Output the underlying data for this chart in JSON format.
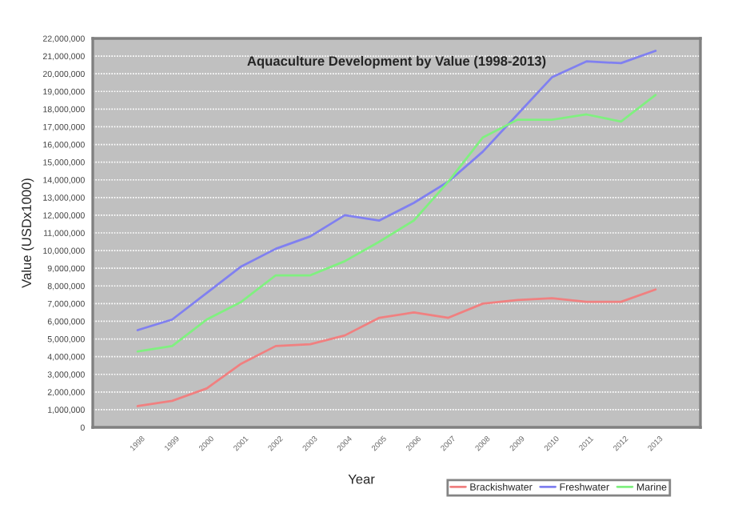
{
  "chart_data": {
    "type": "line",
    "title": "Aquaculture Development by Value (1998-2013)",
    "xlabel": "Year",
    "ylabel": "Value (USDx1000)",
    "categories": [
      "1998",
      "1999",
      "2000",
      "2001",
      "2002",
      "2003",
      "2004",
      "2005",
      "2006",
      "2007",
      "2008",
      "2009",
      "2010",
      "2011",
      "2012",
      "2013"
    ],
    "series": [
      {
        "name": "Brackishwater",
        "color": "#f08080",
        "values": [
          1200000,
          1500000,
          2200000,
          3600000,
          4600000,
          4700000,
          5200000,
          6200000,
          6500000,
          6200000,
          7000000,
          7200000,
          7300000,
          7100000,
          7100000,
          7800000
        ]
      },
      {
        "name": "Freshwater",
        "color": "#8080f0",
        "values": [
          5500000,
          6100000,
          7600000,
          9100000,
          10100000,
          10800000,
          12000000,
          11700000,
          12700000,
          13900000,
          15600000,
          17700000,
          19800000,
          20700000,
          20600000,
          21300000
        ]
      },
      {
        "name": "Marine",
        "color": "#80f080",
        "values": [
          4300000,
          4600000,
          6100000,
          7100000,
          8600000,
          8600000,
          9400000,
          10500000,
          11700000,
          13900000,
          16400000,
          17400000,
          17400000,
          17700000,
          17300000,
          18800000
        ]
      }
    ],
    "ylim": [
      0,
      22000000
    ],
    "yticks": [
      {
        "value": 0,
        "label": "0"
      },
      {
        "value": 1000000,
        "label": "1,000,000"
      },
      {
        "value": 2000000,
        "label": "2,000,000"
      },
      {
        "value": 3000000,
        "label": "3,000,000"
      },
      {
        "value": 4000000,
        "label": "4,000,000"
      },
      {
        "value": 5000000,
        "label": "5,000,000"
      },
      {
        "value": 6000000,
        "label": "6,000,000"
      },
      {
        "value": 7000000,
        "label": "7,000,000"
      },
      {
        "value": 8000000,
        "label": "8,000,000"
      },
      {
        "value": 9000000,
        "label": "9,000,000"
      },
      {
        "value": 10000000,
        "label": "10,000,000"
      },
      {
        "value": 11000000,
        "label": "11,000,000"
      },
      {
        "value": 12000000,
        "label": "12,000,000"
      },
      {
        "value": 13000000,
        "label": "13,000,000"
      },
      {
        "value": 14000000,
        "label": "14,000,000"
      },
      {
        "value": 15000000,
        "label": "15,000,000"
      },
      {
        "value": 16000000,
        "label": "16,000,000"
      },
      {
        "value": 17000000,
        "label": "17,000,000"
      },
      {
        "value": 18000000,
        "label": "18,000,000"
      },
      {
        "value": 19000000,
        "label": "19,000,000"
      },
      {
        "value": 20000000,
        "label": "20,000,000"
      },
      {
        "value": 21000000,
        "label": "21,000,000"
      },
      {
        "value": 22000000,
        "label": "22,000,000"
      }
    ],
    "grid": "y",
    "legend": "bottom",
    "marker": "none",
    "line_style": "solid"
  }
}
